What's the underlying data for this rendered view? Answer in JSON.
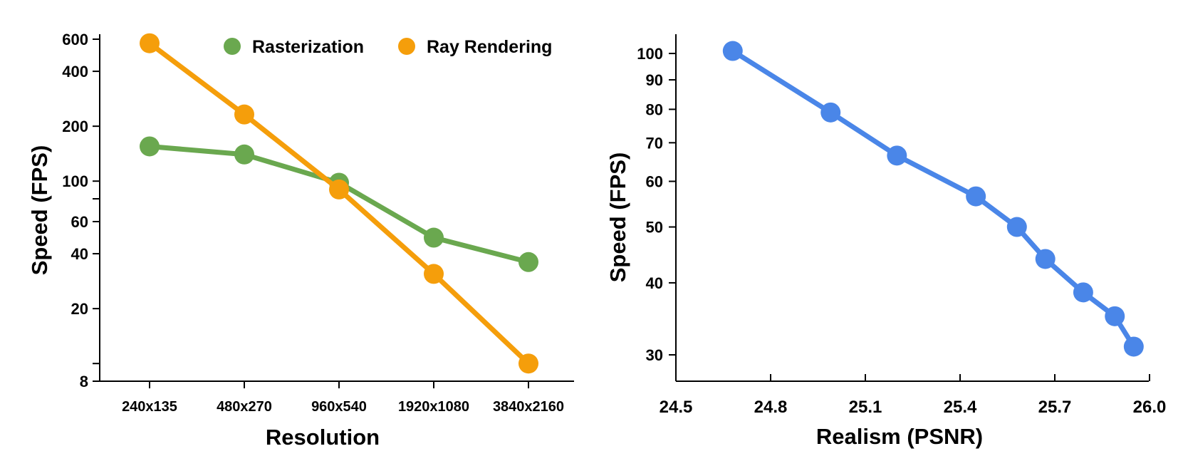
{
  "chart_data": [
    {
      "type": "line",
      "y_scale": "log",
      "categories": [
        "240x135",
        "480x270",
        "960x540",
        "1920x1080",
        "3840x2160"
      ],
      "series": [
        {
          "name": "Rasterization",
          "color": "#6aa84f",
          "values": [
            155,
            140,
            98,
            49,
            36
          ]
        },
        {
          "name": "Ray Rendering",
          "color": "#f59e0b",
          "values": [
            570,
            232,
            90,
            31,
            10
          ]
        }
      ],
      "xlabel": "Resolution",
      "ylabel": "Speed (FPS)",
      "yticks": [
        8,
        20,
        40,
        60,
        100,
        200,
        400,
        600
      ],
      "ylim": [
        8,
        600
      ],
      "legend": "top-right"
    },
    {
      "type": "line",
      "y_scale": "log",
      "series": [
        {
          "name": "speed-vs-psnr",
          "color": "#4a86e8",
          "x": [
            24.68,
            24.99,
            25.2,
            25.45,
            25.58,
            25.67,
            25.79,
            25.89,
            25.95
          ],
          "y": [
            101,
            79,
            66.5,
            56.5,
            50,
            44,
            38.5,
            35,
            31
          ]
        }
      ],
      "xticks": [
        "24.5",
        "24.8",
        "25.1",
        "25.4",
        "25.7",
        "26.0"
      ],
      "xlim": [
        24.5,
        26.0
      ],
      "yticks": [
        30,
        40,
        50,
        60,
        70,
        80,
        90,
        100
      ],
      "ylim": [
        27,
        108
      ],
      "xlabel": "Realism (PSNR)",
      "ylabel": "Speed (FPS)"
    }
  ]
}
